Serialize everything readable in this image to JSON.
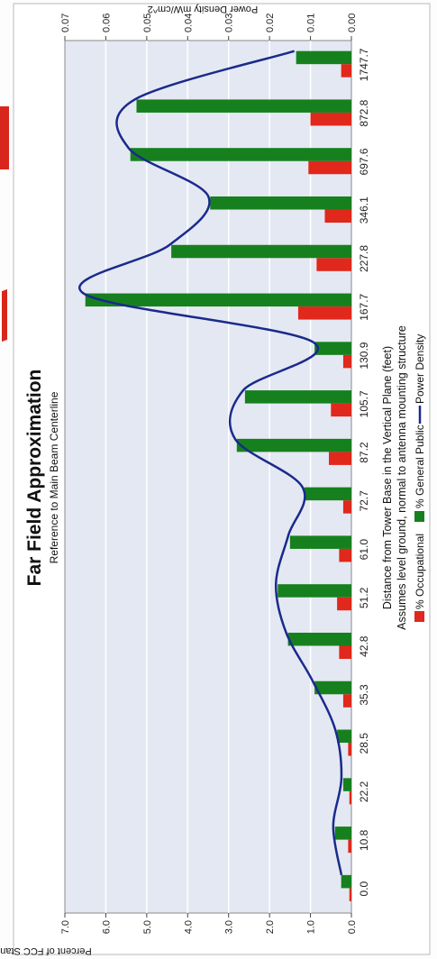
{
  "chart_data": {
    "type": "bar",
    "title": "Far Field Approximation",
    "subtitle": "Reference to Main Beam Centerline",
    "xlabel": "Distance from Tower Base in the Vertical Plane (feet)",
    "xlabel_note": "Assumes level ground, normal to antenna mounting structure",
    "ylabel": "Percent of FCC Standard",
    "y2label": "Power Density mW/cm^2",
    "categories": [
      "0.0",
      "10.8",
      "22.2",
      "28.5",
      "35.3",
      "42.8",
      "51.2",
      "61.0",
      "72.7",
      "87.2",
      "105.7",
      "130.9",
      "167.7",
      "227.8",
      "346.1",
      "697.6",
      "872.8",
      "1747.7"
    ],
    "ylim": [
      0,
      7
    ],
    "y_ticks": [
      "0.0",
      "1.0",
      "2.0",
      "3.0",
      "4.0",
      "5.0",
      "6.0",
      "7.0"
    ],
    "y2lim": [
      0,
      0.07
    ],
    "y2_ticks": [
      "0.00",
      "0.01",
      "0.02",
      "0.03",
      "0.04",
      "0.05",
      "0.06",
      "0.07"
    ],
    "series": [
      {
        "name": "% Occupational",
        "color": "#e0281c",
        "values": [
          0.05,
          0.08,
          0.05,
          0.08,
          0.2,
          0.3,
          0.35,
          0.3,
          0.2,
          0.55,
          0.5,
          0.2,
          1.3,
          0.85,
          0.65,
          1.05,
          1.0,
          0.25
        ]
      },
      {
        "name": "% General Public",
        "color": "#17801e",
        "values": [
          0.25,
          0.4,
          0.2,
          0.35,
          0.9,
          1.55,
          1.8,
          1.5,
          1.15,
          2.8,
          2.6,
          0.9,
          6.5,
          4.4,
          3.45,
          5.4,
          5.25,
          1.35
        ]
      },
      {
        "name": "Power Density",
        "color": "#1a2a8c",
        "type": "line",
        "values": [
          0.002,
          0.004,
          0.002,
          0.0035,
          0.009,
          0.0155,
          0.018,
          0.015,
          0.0115,
          0.028,
          0.026,
          0.009,
          0.065,
          0.044,
          0.0345,
          0.054,
          0.0525,
          0.0135
        ]
      }
    ],
    "legend_position": "bottom",
    "grid": true,
    "orientation": "rotated 90 degrees clockwise (scan)"
  }
}
